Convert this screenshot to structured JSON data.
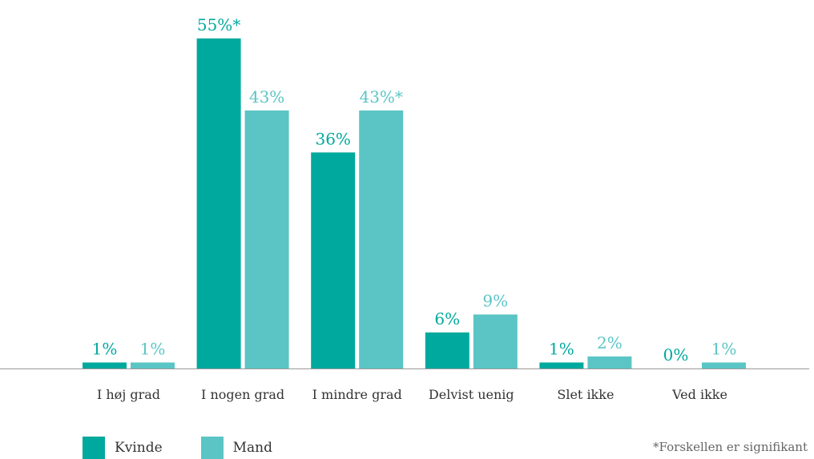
{
  "chart_data": {
    "type": "bar",
    "categories": [
      "I høj grad",
      "I nogen grad",
      "I mindre grad",
      "Delvist uenig",
      "Slet ikke",
      "Ved ikke"
    ],
    "series": [
      {
        "name": "Kvinde",
        "values": [
          1,
          55,
          36,
          6,
          1,
          0
        ],
        "labels": [
          "1%",
          "55%*",
          "36%",
          "6%",
          "1%",
          "0%"
        ],
        "color": "#00a99d"
      },
      {
        "name": "Mand",
        "values": [
          1,
          43,
          43,
          9,
          2,
          1
        ],
        "labels": [
          "1%",
          "43%",
          "43%*",
          "9%",
          "2%",
          "1%"
        ],
        "color": "#5bc5c5"
      }
    ],
    "ylim": [
      0,
      55
    ],
    "grid": false,
    "legend_position": "bottom-left",
    "footnote": "*Forskellen er signifikant"
  }
}
